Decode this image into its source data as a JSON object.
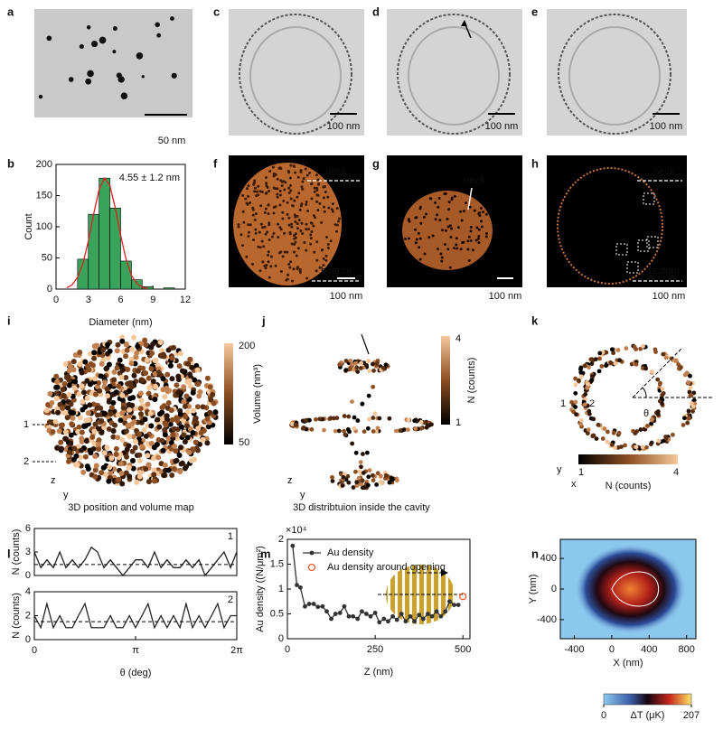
{
  "panel_labels": [
    "a",
    "b",
    "c",
    "d",
    "e",
    "f",
    "g",
    "h",
    "i",
    "j",
    "k",
    "l",
    "m",
    "n"
  ],
  "panels": {
    "a": {
      "scale": "50 nm"
    },
    "c": {
      "scale": "100 nm"
    },
    "d": {
      "scale": "100 nm"
    },
    "e": {
      "scale": "100 nm"
    },
    "f": {
      "scale": "100 nm",
      "top": "neck",
      "bottom": "bottom"
    },
    "g": {
      "scale": "100 nm",
      "top": "neck"
    },
    "h": {
      "scale": "100 nm",
      "top": "neck",
      "bottom": "bottom"
    },
    "i": {
      "caption": "3D position and volume map",
      "colorbar_max": "200",
      "colorbar_label": "Volume (nm³)",
      "colorbar_min": "50",
      "markers": [
        "1",
        "2"
      ],
      "axes": [
        "z",
        "y"
      ]
    },
    "j": {
      "caption": "3D distribtuion inside the cavity",
      "colorbar_max": "4",
      "colorbar_label": "N  (counts)",
      "colorbar_min": "1",
      "axes": [
        "z",
        "y"
      ]
    },
    "k": {
      "colorbar_min": "1",
      "colorbar_max": "4",
      "colorbar_label": "N (counts)",
      "markers": [
        "1",
        "2"
      ],
      "angle": "θ",
      "axes": [
        "y",
        "x"
      ]
    }
  },
  "chart_data": [
    {
      "type": "histogram",
      "annotation": "4.55 ± 1.2 nm",
      "x_label": "Diameter (nm)",
      "y_label": "Count",
      "bins": [
        2,
        3,
        4,
        5,
        6,
        7,
        8,
        9,
        10,
        11
      ],
      "values": [
        48,
        120,
        178,
        130,
        45,
        15,
        4,
        0,
        2
      ],
      "color": "#3aa35b",
      "xlim": [
        0,
        12
      ],
      "xticks": [
        0,
        3,
        6,
        9,
        12
      ],
      "ylim": [
        0,
        200
      ],
      "yticks": [
        0,
        50,
        100,
        150,
        200
      ],
      "fit": {
        "color": "#e02020",
        "x": [
          1,
          1.5,
          2,
          2.5,
          3,
          3.5,
          4,
          4.5,
          5,
          5.5,
          6,
          6.5,
          7,
          7.5,
          8,
          8.5
        ],
        "values": [
          2,
          7,
          19,
          41,
          77,
          121,
          160,
          178,
          166,
          130,
          86,
          48,
          22,
          9,
          3,
          1
        ]
      }
    },
    {
      "type": "line",
      "y_label": "N (counts)",
      "annotation": "1",
      "color": "#222222",
      "reference": 1.4,
      "x": [
        0,
        0.2,
        0.39,
        0.59,
        0.79,
        0.98,
        1.18,
        1.37,
        1.57,
        1.77,
        1.96,
        2.16,
        2.36,
        2.55,
        2.75,
        2.95,
        3.14,
        3.34,
        3.53,
        3.73,
        3.93,
        4.12,
        4.32,
        4.52,
        4.71,
        4.91,
        5.11,
        5.3,
        5.5,
        5.69,
        5.89,
        6.09,
        6.28
      ],
      "values": [
        3,
        1,
        2,
        1,
        3,
        1,
        2,
        1,
        2,
        3.6,
        3,
        1,
        2,
        1,
        0,
        1,
        2,
        2,
        1,
        3,
        1,
        2,
        1,
        1,
        2,
        1,
        2,
        0,
        1,
        2,
        3,
        1,
        3
      ],
      "xlim": [
        0,
        6.2832
      ],
      "ylim": [
        0,
        6
      ],
      "yticks": [
        0,
        3,
        6
      ]
    },
    {
      "type": "line",
      "y_label": "N (counts)",
      "x_label": "θ (deg)",
      "annotation": "2",
      "color": "#222222",
      "reference": 1.5,
      "x": [
        0,
        0.2,
        0.39,
        0.59,
        0.79,
        0.98,
        1.18,
        1.37,
        1.57,
        1.77,
        1.96,
        2.16,
        2.36,
        2.55,
        2.75,
        2.95,
        3.14,
        3.34,
        3.53,
        3.73,
        3.93,
        4.12,
        4.32,
        4.52,
        4.71,
        4.91,
        5.11,
        5.3,
        5.5,
        5.69,
        5.89,
        6.09,
        6.28
      ],
      "values": [
        2,
        1,
        3,
        1,
        2,
        1,
        1,
        2,
        3,
        1,
        1,
        1,
        2,
        1,
        1,
        2,
        1,
        2,
        3,
        1,
        2,
        1,
        2,
        1,
        3,
        1,
        2,
        1,
        2,
        3,
        1,
        2,
        2
      ],
      "xlim": [
        0,
        6.2832
      ],
      "xticks": [
        0,
        {
          "value": 3.1416,
          "label": "π"
        },
        {
          "value": 6.2832,
          "label": "2π"
        }
      ],
      "ylim": [
        0,
        4
      ],
      "yticks": [
        0,
        2,
        4
      ]
    },
    {
      "type": "line",
      "x_label": "Z (nm)",
      "y_label": "Au density ((N/μm²)",
      "y_multiplier": "×10⁴",
      "series": [
        {
          "name": "Au density",
          "color": "#333333",
          "x": [
            15,
            27,
            37,
            50,
            62,
            75,
            87,
            100,
            112,
            125,
            137,
            150,
            162,
            175,
            187,
            200,
            212,
            225,
            237,
            250,
            262,
            275,
            287,
            300,
            312,
            325,
            337,
            350,
            362,
            375,
            387,
            400,
            412,
            425,
            437,
            450,
            462,
            475,
            487
          ],
          "values": [
            1.87,
            1.08,
            1.03,
            0.65,
            0.7,
            0.7,
            0.64,
            0.65,
            0.55,
            0.4,
            0.5,
            0.52,
            0.65,
            0.45,
            0.45,
            0.4,
            0.55,
            0.5,
            0.45,
            0.52,
            0.33,
            0.4,
            0.35,
            0.45,
            0.38,
            0.5,
            0.35,
            0.45,
            0.35,
            0.48,
            0.4,
            0.5,
            0.45,
            0.55,
            0.45,
            0.55,
            0.75,
            0.68,
            0.68
          ]
        },
        {
          "name": "Au density around opening",
          "color": "#f05a28",
          "x": [
            500
          ],
          "values": [
            0.85
          ]
        }
      ],
      "xlim": [
        0,
        520
      ],
      "xticks": [
        0,
        250,
        500
      ],
      "ylim": [
        0,
        2
      ],
      "yticks": [
        0,
        0.5,
        1,
        1.5,
        2
      ]
    },
    {
      "type": "heatmap",
      "x_label": "X (nm)",
      "y_label": "Y (nm)",
      "xlim": [
        -550,
        900
      ],
      "xticks": [
        -400,
        0,
        400,
        800
      ],
      "ylim": [
        -650,
        650
      ],
      "yticks": [
        -400,
        0,
        400
      ],
      "colorbar_label": "ΔT (μK)",
      "clim": [
        0,
        207
      ],
      "cticks": [
        0,
        207
      ]
    }
  ]
}
